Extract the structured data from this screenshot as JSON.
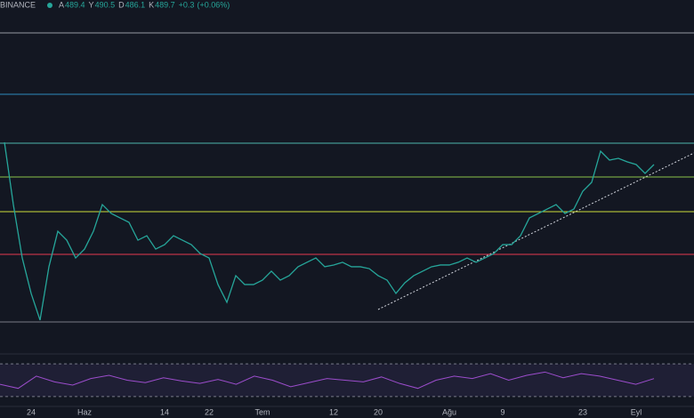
{
  "header": {
    "exchange": "BINANCE",
    "ohlc": [
      {
        "label": "A",
        "value": 489.4
      },
      {
        "label": "Y",
        "value": 490.5
      },
      {
        "label": "D",
        "value": 486.1
      },
      {
        "label": "K",
        "value": 489.7
      }
    ],
    "change": 0.3,
    "change_label": "+0.3",
    "change_pct": 0.06,
    "change_pct_label": "(+0.06%)"
  },
  "chart_data": {
    "type": "line",
    "color": "#26a69a",
    "ylim": [
      330,
      630
    ],
    "categories": [
      null,
      null,
      null,
      "24",
      null,
      null,
      null,
      null,
      null,
      "Haz",
      null,
      null,
      null,
      null,
      null,
      null,
      null,
      null,
      "14",
      null,
      null,
      null,
      null,
      "22",
      null,
      null,
      null,
      null,
      null,
      "Tem",
      null,
      null,
      null,
      null,
      null,
      null,
      null,
      "12",
      null,
      null,
      null,
      null,
      "20",
      null,
      null,
      null,
      null,
      null,
      null,
      null,
      "Ağu",
      null,
      null,
      null,
      null,
      null,
      "9",
      null,
      null,
      null,
      null,
      null,
      null,
      null,
      null,
      "23",
      null,
      null,
      null,
      null,
      null,
      "Eyl",
      null,
      null
    ],
    "values": [
      508.5,
      455.3,
      409.7,
      379.4,
      356.6,
      402.2,
      432.5,
      424.9,
      409.7,
      417.3,
      432.5,
      455.3,
      447.7,
      443.9,
      440.1,
      424.9,
      428.7,
      417.3,
      421.1,
      428.7,
      424.9,
      421.1,
      413.5,
      409.7,
      387.0,
      371.8,
      394.6,
      387.0,
      387.0,
      390.8,
      398.4,
      390.8,
      394.6,
      402.2,
      406.0,
      409.7,
      402.2,
      403.7,
      406.0,
      402.2,
      402.2,
      400.6,
      394.6,
      390.8,
      379.4,
      388.5,
      394.6,
      398.4,
      402.2,
      403.7,
      403.7,
      406.0,
      409.7,
      406.0,
      409.7,
      413.5,
      421.1,
      421.1,
      428.7,
      443.9,
      447.7,
      451.5,
      455.3,
      447.7,
      451.5,
      466.7,
      474.3,
      500.9,
      493.3,
      494.8,
      491.8,
      489.5,
      481.9,
      489.5
    ],
    "levels": [
      {
        "value": 601.9,
        "color": "#9598a1"
      },
      {
        "value": 549.5,
        "color": "#2e8bbd"
      },
      {
        "value": 507.7,
        "color": "#4db6ac"
      },
      {
        "value": 478.9,
        "color": "#8bc34a"
      },
      {
        "value": 449.2,
        "color": "#cddc39"
      },
      {
        "value": 412.8,
        "color": "#e53950"
      },
      {
        "value": 355.1,
        "color": "#787b86"
      }
    ],
    "rsi": {
      "color": "#9c4dcc",
      "ylim": [
        20,
        80
      ],
      "bands": [
        70,
        30
      ],
      "values": [
        45,
        40,
        55,
        48,
        44,
        52,
        56,
        50,
        47,
        53,
        49,
        46,
        51,
        45,
        55,
        50,
        42,
        47,
        52,
        50,
        48,
        54,
        46,
        40,
        50,
        55,
        52,
        58,
        50,
        56,
        60,
        53,
        58,
        55,
        50,
        45,
        52
      ]
    }
  }
}
